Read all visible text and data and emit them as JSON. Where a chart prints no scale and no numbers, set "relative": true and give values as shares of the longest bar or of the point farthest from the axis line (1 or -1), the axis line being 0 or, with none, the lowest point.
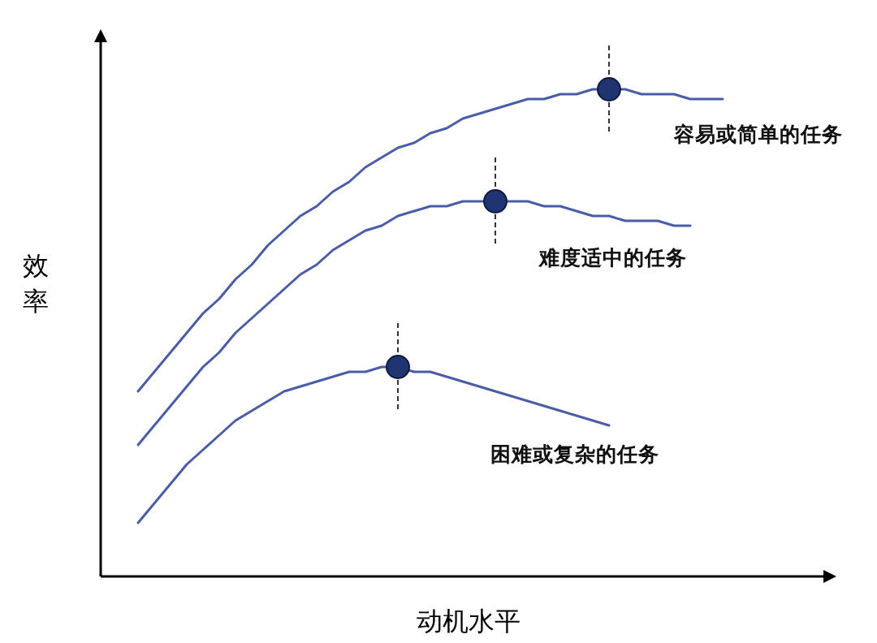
{
  "chart_data": {
    "type": "line",
    "relative": true,
    "xlabel": "动机水平",
    "ylabel": "效率",
    "categories": [
      null,
      null,
      null,
      null,
      null,
      null,
      null,
      null,
      null,
      null,
      null,
      null,
      null,
      null,
      null,
      null,
      null,
      null,
      null,
      null,
      null,
      null,
      null,
      null,
      null,
      null,
      null,
      null,
      null,
      null,
      null,
      null,
      null,
      null,
      null,
      null,
      null
    ],
    "series": [
      {
        "name": "容易或简单的任务",
        "type": "line",
        "color": "#4a5ca8",
        "values": [
          0.38,
          0.42,
          0.46,
          0.5,
          0.54,
          0.57,
          0.61,
          0.64,
          0.68,
          0.71,
          0.74,
          0.76,
          0.79,
          0.81,
          0.84,
          0.86,
          0.88,
          0.89,
          0.91,
          0.92,
          0.94,
          0.95,
          0.96,
          0.97,
          0.98,
          0.98,
          0.99,
          0.99,
          1.0,
          1.0,
          1.0,
          0.99,
          0.99,
          0.99,
          0.98,
          0.98,
          0.98
        ]
      },
      {
        "name": "难度适中的任务",
        "type": "line",
        "color": "#4a5ca8",
        "values": [
          0.27,
          0.31,
          0.35,
          0.39,
          0.43,
          0.46,
          0.5,
          0.53,
          0.56,
          0.59,
          0.62,
          0.64,
          0.67,
          0.69,
          0.71,
          0.72,
          0.74,
          0.75,
          0.76,
          0.76,
          0.77,
          0.77,
          0.77,
          0.77,
          0.77,
          0.76,
          0.76,
          0.75,
          0.74,
          0.74,
          0.73,
          0.73,
          0.73,
          0.72,
          0.72,
          null,
          null
        ]
      },
      {
        "name": "困难或复杂的任务",
        "type": "line",
        "color": "#4a5ca8",
        "values": [
          0.11,
          0.15,
          0.19,
          0.23,
          0.26,
          0.29,
          0.32,
          0.34,
          0.36,
          0.38,
          0.39,
          0.4,
          0.41,
          0.42,
          0.42,
          0.43,
          0.43,
          0.42,
          0.42,
          0.41,
          0.4,
          0.39,
          0.38,
          0.37,
          0.36,
          0.35,
          0.34,
          0.33,
          0.32,
          0.31,
          null,
          null,
          null,
          null,
          null,
          null,
          null
        ]
      }
    ]
  }
}
